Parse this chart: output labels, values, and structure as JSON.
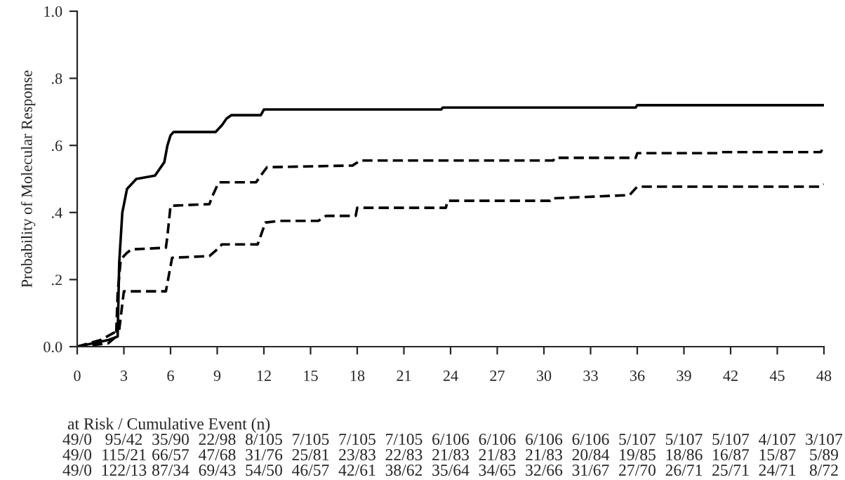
{
  "chart_data": {
    "type": "line",
    "ylabel": "Probability of Molecular Response",
    "xlim": [
      0,
      48
    ],
    "xticks": [
      0,
      3,
      6,
      9,
      12,
      15,
      18,
      21,
      24,
      27,
      30,
      33,
      36,
      39,
      42,
      45,
      48
    ],
    "ylim": [
      0,
      1.0
    ],
    "yticks": [
      {
        "value": 0,
        "label": "0.0"
      },
      {
        "value": 0.2,
        "label": ".2"
      },
      {
        "value": 0.4,
        "label": ".4"
      },
      {
        "value": 0.6,
        "label": ".6"
      },
      {
        "value": 0.8,
        "label": ".8"
      },
      {
        "value": 1.0,
        "label": "1.0"
      }
    ],
    "grid": false,
    "marker": "none",
    "series": [
      {
        "color": "#000000",
        "line_style": "solid",
        "x": [
          0,
          1,
          2,
          2.6,
          2.7,
          2.9,
          3.2,
          3.4,
          3.8,
          5.0,
          5.6,
          5.8,
          6.0,
          6.2,
          8.9,
          9.3,
          9.6,
          9.9,
          11.8,
          12.0,
          23.4,
          23.5,
          35.9,
          36,
          48
        ],
        "values": [
          0,
          0.01,
          0.02,
          0.03,
          0.25,
          0.4,
          0.47,
          0.48,
          0.5,
          0.51,
          0.55,
          0.6,
          0.63,
          0.64,
          0.64,
          0.66,
          0.68,
          0.69,
          0.69,
          0.707,
          0.707,
          0.713,
          0.713,
          0.72,
          0.72
        ]
      },
      {
        "color": "#000000",
        "line_style": "dashed",
        "x": [
          0,
          2.0,
          2.5,
          2.6,
          2.8,
          3.2,
          3.5,
          5.7,
          5.8,
          6.0,
          8.5,
          8.7,
          9.1,
          11.5,
          11.8,
          12.2,
          17.7,
          18.2,
          30.6,
          30.7,
          35.9,
          36,
          41.3,
          41.4,
          47.8,
          48
        ],
        "values": [
          0,
          0.01,
          0.03,
          0.16,
          0.26,
          0.28,
          0.29,
          0.295,
          0.33,
          0.42,
          0.425,
          0.45,
          0.49,
          0.49,
          0.51,
          0.535,
          0.54,
          0.555,
          0.555,
          0.563,
          0.563,
          0.577,
          0.577,
          0.58,
          0.58,
          0.597
        ]
      },
      {
        "color": "#000000",
        "line_style": "dashed",
        "x": [
          0,
          1.5,
          2.7,
          3.0,
          5.7,
          6.1,
          8.5,
          9.0,
          9.3,
          11.6,
          12.1,
          13,
          15.5,
          16,
          17.9,
          18,
          23.7,
          23.8,
          30.4,
          30.5,
          35.5,
          36,
          47.8,
          48
        ],
        "values": [
          0,
          0.02,
          0.05,
          0.165,
          0.165,
          0.265,
          0.27,
          0.29,
          0.305,
          0.305,
          0.37,
          0.375,
          0.375,
          0.39,
          0.39,
          0.414,
          0.414,
          0.435,
          0.435,
          0.442,
          0.452,
          0.477,
          0.477,
          0.484
        ]
      }
    ],
    "annotations": [
      "at Risk / Cumulative Event (n)",
      "49/0",
      "95/42",
      "35/90",
      "22/98",
      "8/105",
      "7/105",
      "7/105",
      "7/105",
      "6/106",
      "6/106",
      "6/106",
      "6/106",
      "5/107",
      "5/107",
      "5/107",
      "4/107",
      "3/107",
      "49/0",
      "115/21",
      "66/57",
      "47/68",
      "31/76",
      "25/81",
      "23/83",
      "22/83",
      "21/83",
      "21/83",
      "21/83",
      "20/84",
      "19/85",
      "18/86",
      "16/87",
      "15/87",
      "5/89",
      "49/0",
      "122/13",
      "87/34",
      "69/43",
      "54/50",
      "46/57",
      "42/61",
      "38/62",
      "35/64",
      "34/65",
      "32/66",
      "31/67",
      "27/70",
      "26/71",
      "25/71",
      "24/71",
      "8/72"
    ]
  }
}
